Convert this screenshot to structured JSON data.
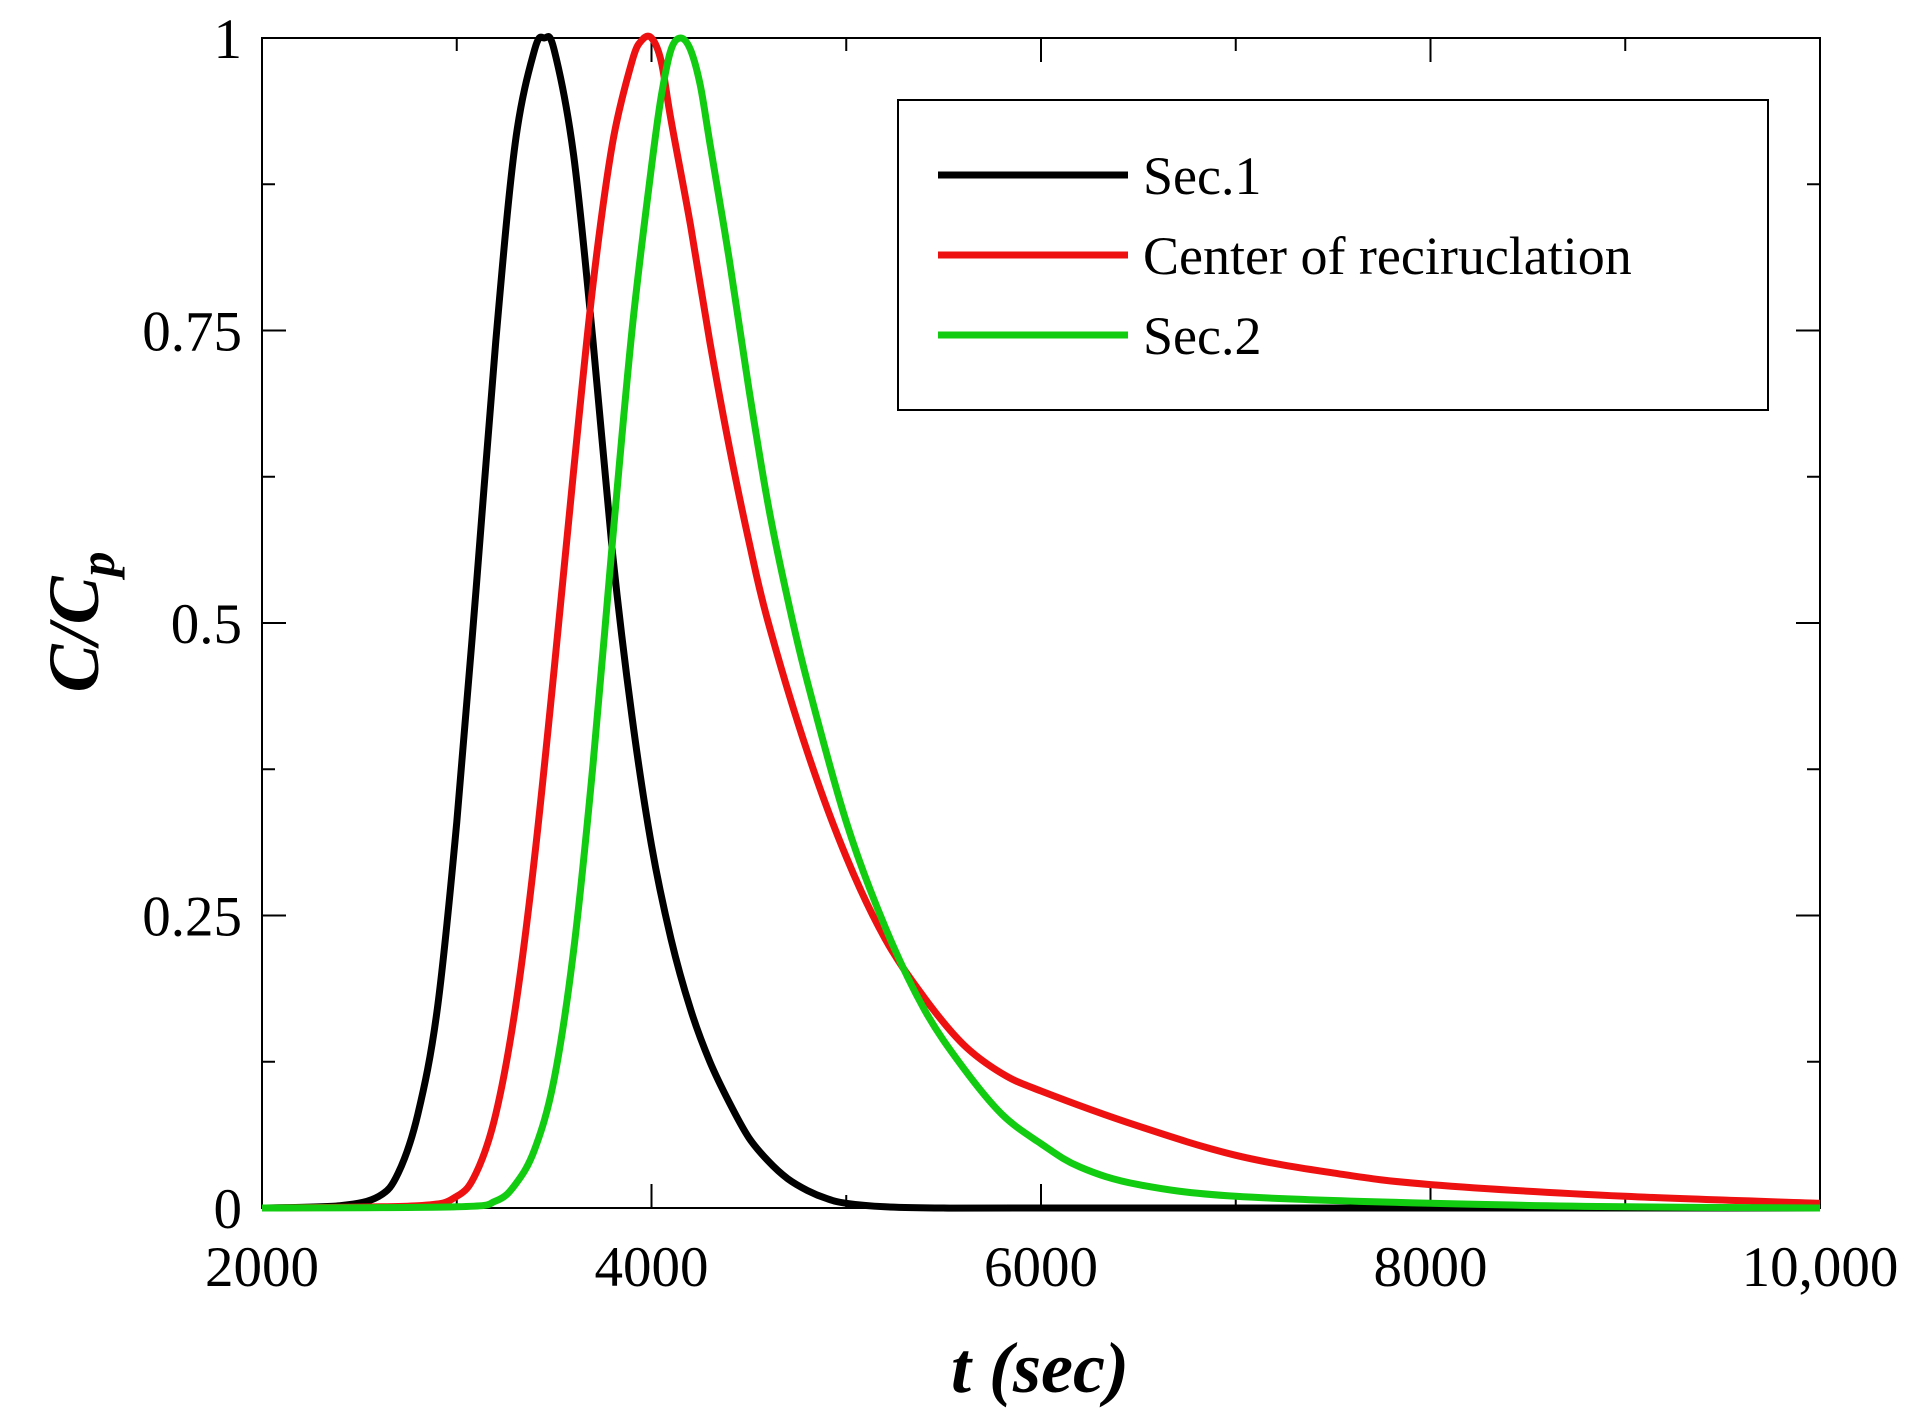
{
  "chart_data": {
    "type": "line",
    "title": "",
    "xlabel": "t (sec)",
    "ylabel_main": "C/C",
    "ylabel_sub": "p",
    "xlim": [
      2000,
      10000
    ],
    "ylim": [
      0,
      1
    ],
    "x_ticks": [
      {
        "value": 2000,
        "label": "2000"
      },
      {
        "value": 4000,
        "label": "4000"
      },
      {
        "value": 6000,
        "label": "6000"
      },
      {
        "value": 8000,
        "label": "8000"
      },
      {
        "value": 10000,
        "label": "10,000"
      }
    ],
    "x_minor_ticks": [
      3000,
      5000,
      7000,
      9000
    ],
    "y_ticks": [
      {
        "value": 0,
        "label": "0"
      },
      {
        "value": 0.25,
        "label": "0.25"
      },
      {
        "value": 0.5,
        "label": "0.5"
      },
      {
        "value": 0.75,
        "label": "0.75"
      },
      {
        "value": 1,
        "label": "1"
      }
    ],
    "y_minor_ticks": [
      0.125,
      0.375,
      0.625,
      0.875
    ],
    "grid": false,
    "legend_position": "top-right",
    "series": [
      {
        "name": "Sec.1",
        "color": "#000000",
        "x": [
          2000,
          2400,
          2600,
          2700,
          2800,
          2900,
          3000,
          3100,
          3200,
          3300,
          3400,
          3450,
          3500,
          3600,
          3700,
          3800,
          3900,
          4000,
          4100,
          4200,
          4300,
          4400,
          4500,
          4600,
          4700,
          4800,
          4900,
          5000,
          5200,
          5500,
          6000,
          10000
        ],
        "y": [
          0,
          0.002,
          0.01,
          0.03,
          0.08,
          0.17,
          0.33,
          0.53,
          0.74,
          0.91,
          0.99,
          1.0,
          0.99,
          0.9,
          0.74,
          0.56,
          0.42,
          0.31,
          0.23,
          0.17,
          0.125,
          0.09,
          0.06,
          0.04,
          0.025,
          0.015,
          0.008,
          0.004,
          0.001,
          0,
          0,
          0
        ]
      },
      {
        "name": "Center of reciruclation",
        "color": "#ee1111",
        "x": [
          2000,
          2800,
          3000,
          3100,
          3200,
          3300,
          3400,
          3500,
          3600,
          3700,
          3800,
          3900,
          3950,
          4000,
          4050,
          4100,
          4200,
          4300,
          4400,
          4500,
          4600,
          4800,
          5000,
          5200,
          5400,
          5600,
          5800,
          6000,
          6500,
          7000,
          7500,
          8000,
          9000,
          10000
        ],
        "y": [
          0,
          0.002,
          0.01,
          0.03,
          0.08,
          0.17,
          0.3,
          0.46,
          0.63,
          0.79,
          0.91,
          0.98,
          0.998,
          1.0,
          0.98,
          0.93,
          0.84,
          0.74,
          0.65,
          0.57,
          0.5,
          0.39,
          0.3,
          0.23,
          0.18,
          0.14,
          0.115,
          0.1,
          0.07,
          0.045,
          0.03,
          0.02,
          0.01,
          0.004
        ]
      },
      {
        "name": "Sec.2",
        "color": "#11cc11",
        "x": [
          2000,
          3000,
          3200,
          3300,
          3400,
          3500,
          3600,
          3700,
          3800,
          3900,
          4000,
          4050,
          4100,
          4150,
          4200,
          4250,
          4300,
          4400,
          4500,
          4600,
          4700,
          4800,
          5000,
          5200,
          5400,
          5600,
          5800,
          6000,
          6200,
          6500,
          7000,
          8000,
          9000,
          10000
        ],
        "y": [
          0,
          0.001,
          0.006,
          0.02,
          0.05,
          0.11,
          0.22,
          0.38,
          0.57,
          0.75,
          0.89,
          0.95,
          0.99,
          1.0,
          0.99,
          0.96,
          0.91,
          0.81,
          0.7,
          0.6,
          0.52,
          0.45,
          0.33,
          0.24,
          0.17,
          0.12,
          0.08,
          0.055,
          0.035,
          0.02,
          0.01,
          0.004,
          0.001,
          0
        ]
      }
    ]
  }
}
